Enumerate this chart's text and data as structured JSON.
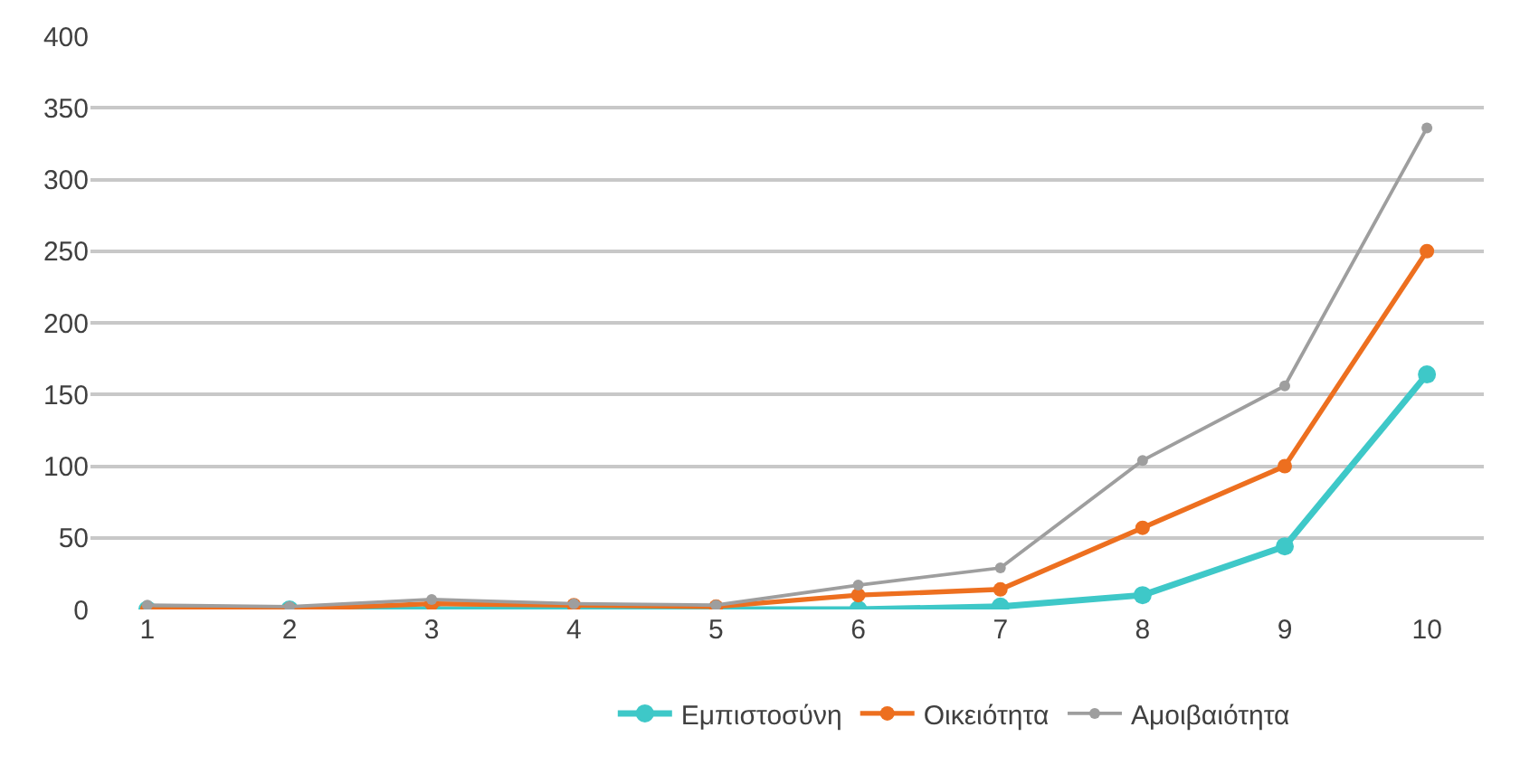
{
  "chart_data": {
    "type": "line",
    "categories": [
      "1",
      "2",
      "3",
      "4",
      "5",
      "6",
      "7",
      "8",
      "9",
      "10"
    ],
    "series": [
      {
        "name": "Εμπιστοσύνη",
        "color": "#3ec8c8",
        "values": [
          0,
          0,
          0,
          0,
          0,
          0,
          2,
          10,
          44,
          164
        ]
      },
      {
        "name": "Οικειότητα",
        "color": "#ed6f1f",
        "values": [
          0,
          0,
          4,
          3,
          2,
          10,
          14,
          57,
          100,
          250
        ]
      },
      {
        "name": "Αμοιβαιότητα",
        "color": "#9e9e9e",
        "values": [
          3,
          2,
          7,
          4,
          3,
          17,
          29,
          104,
          156,
          336
        ]
      }
    ],
    "ylim": [
      0,
      400
    ],
    "yticks": [
      0,
      50,
      100,
      150,
      200,
      250,
      300,
      350,
      400
    ],
    "grid": "y",
    "legend": "bottom",
    "marker": "circle",
    "line_style": "solid"
  }
}
